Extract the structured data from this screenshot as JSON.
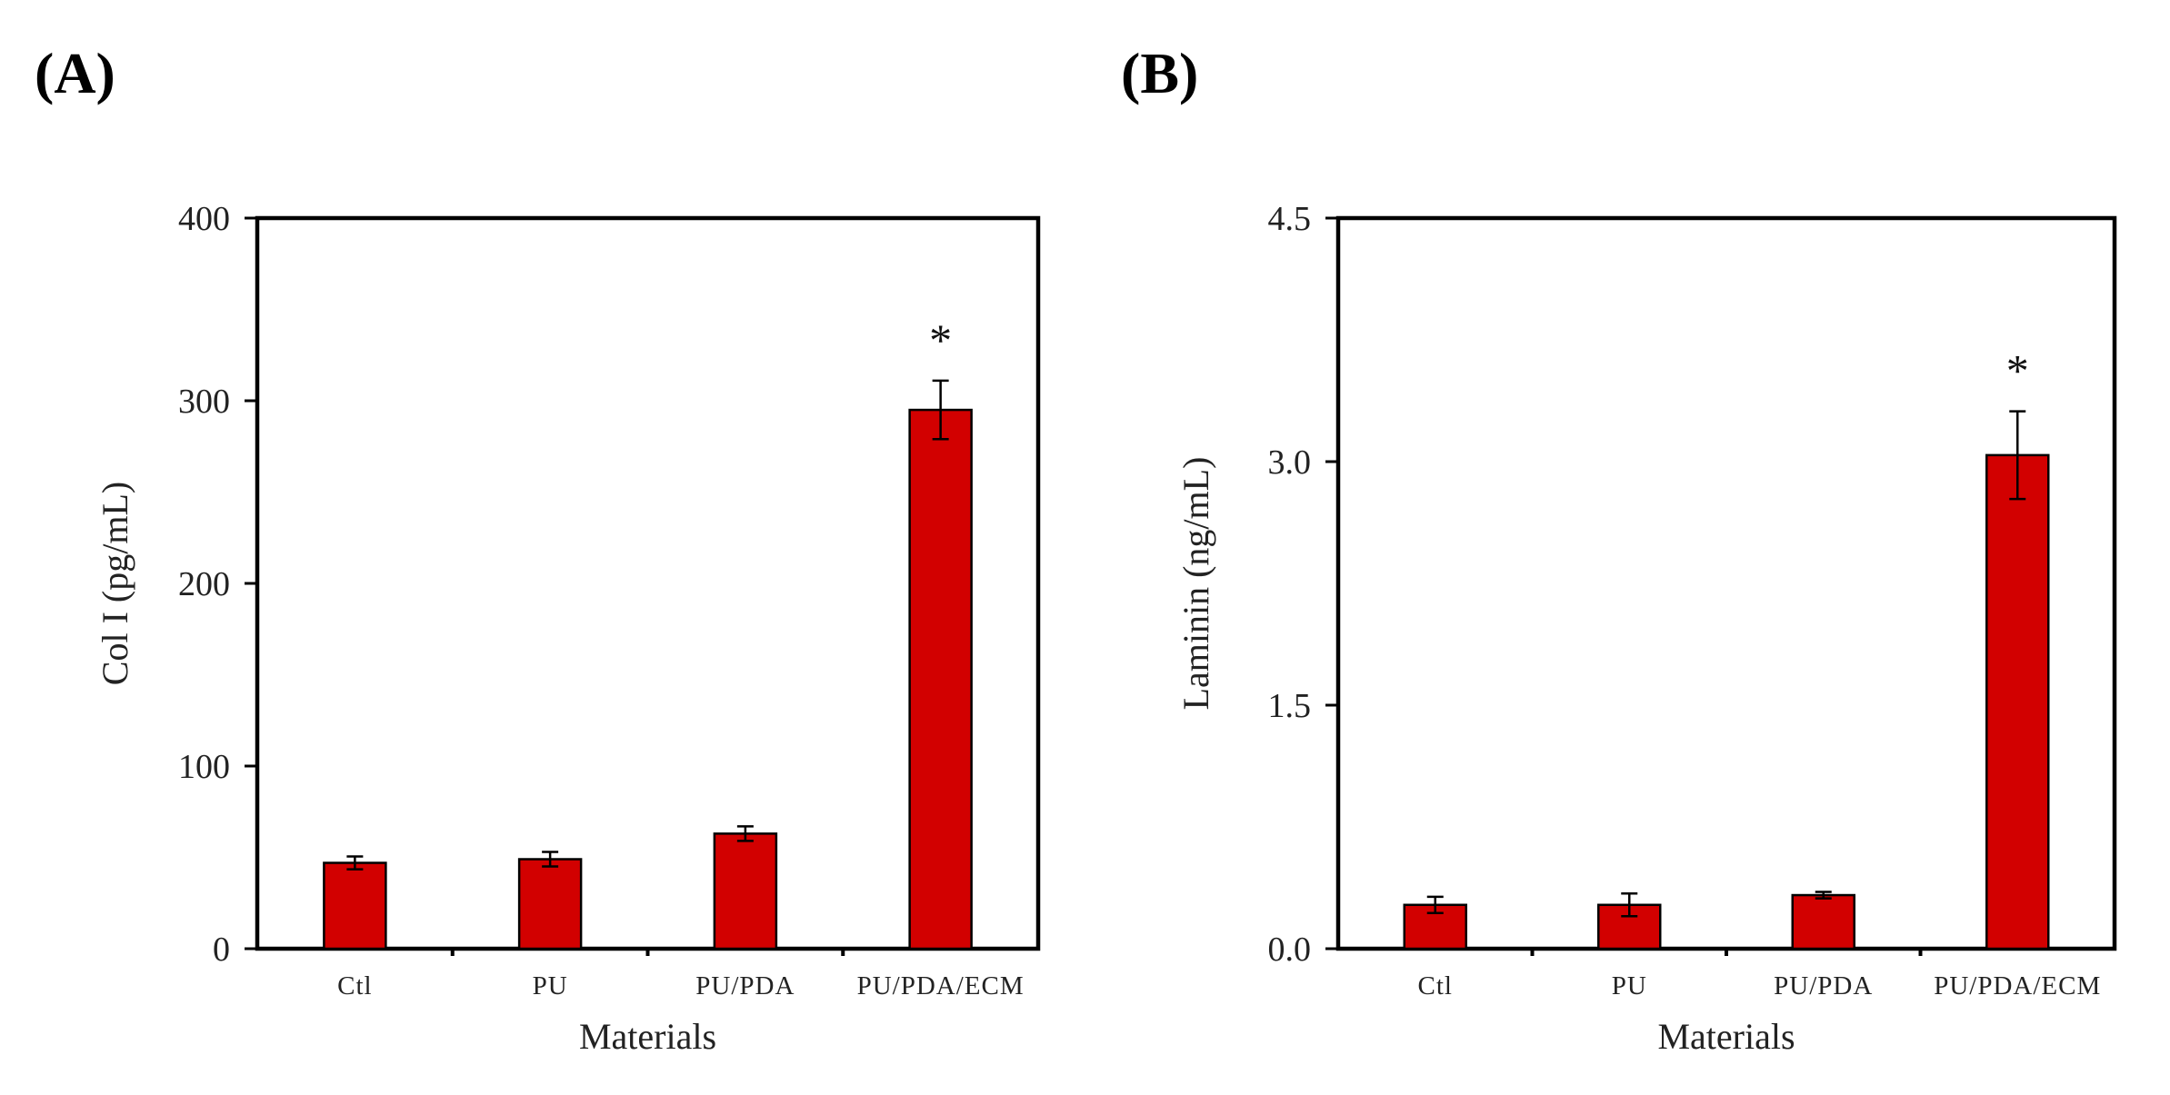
{
  "chart_data": [
    {
      "panel_label": "(A)",
      "type": "bar",
      "categories": [
        "Ctl",
        "PU",
        "PU/PDA",
        "PU/PDA/ECM"
      ],
      "values": [
        47,
        49,
        63,
        295
      ],
      "errors": [
        3.5,
        4,
        4,
        16
      ],
      "significance": [
        "",
        "",
        "",
        "*"
      ],
      "xlabel": "Materials",
      "ylabel": "Col I (pg/mL)",
      "ylim": [
        0,
        400
      ],
      "yticks": [
        "0",
        "100",
        "200",
        "300",
        "400"
      ],
      "bar_color": "#d20000"
    },
    {
      "panel_label": "(B)",
      "type": "bar",
      "categories": [
        "Ctl",
        "PU",
        "PU/PDA",
        "PU/PDA/ECM"
      ],
      "values": [
        0.27,
        0.27,
        0.33,
        3.04
      ],
      "errors": [
        0.05,
        0.07,
        0.02,
        0.27
      ],
      "significance": [
        "",
        "",
        "",
        "*"
      ],
      "xlabel": "Materials",
      "ylabel": "Laminin (ng/mL)",
      "ylim": [
        0,
        4.5
      ],
      "yticks": [
        "0.0",
        "1.5",
        "3.0",
        "4.5"
      ],
      "bar_color": "#d20000"
    }
  ]
}
